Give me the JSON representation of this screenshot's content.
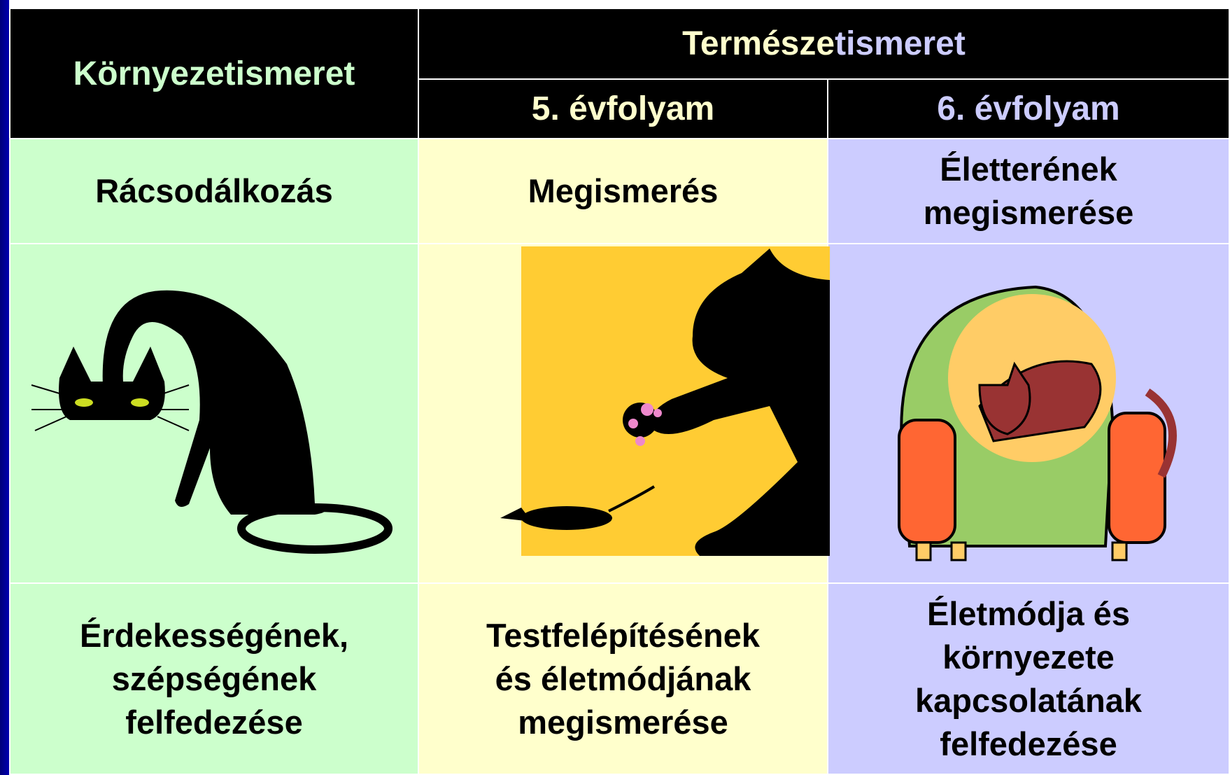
{
  "header": {
    "first_column": "Környezetismeret",
    "group_title_parts": [
      "Természe",
      "tismeret"
    ],
    "second_column": "5. évfolyam",
    "third_column": "6. évfolyam"
  },
  "rows": [
    [
      [
        "Rácsodálkozás"
      ],
      [
        "Megismerés"
      ],
      [
        "Életterének",
        "megismerése"
      ]
    ],
    [
      [
        "Érdekességének,",
        "szépségének",
        "felfedezése"
      ],
      [
        "Testfelépítésének",
        "és életmódjának",
        "megismerése"
      ],
      [
        "Életmódja és",
        "környezete",
        "kapcsolatának",
        "felfedezése"
      ]
    ]
  ]
}
